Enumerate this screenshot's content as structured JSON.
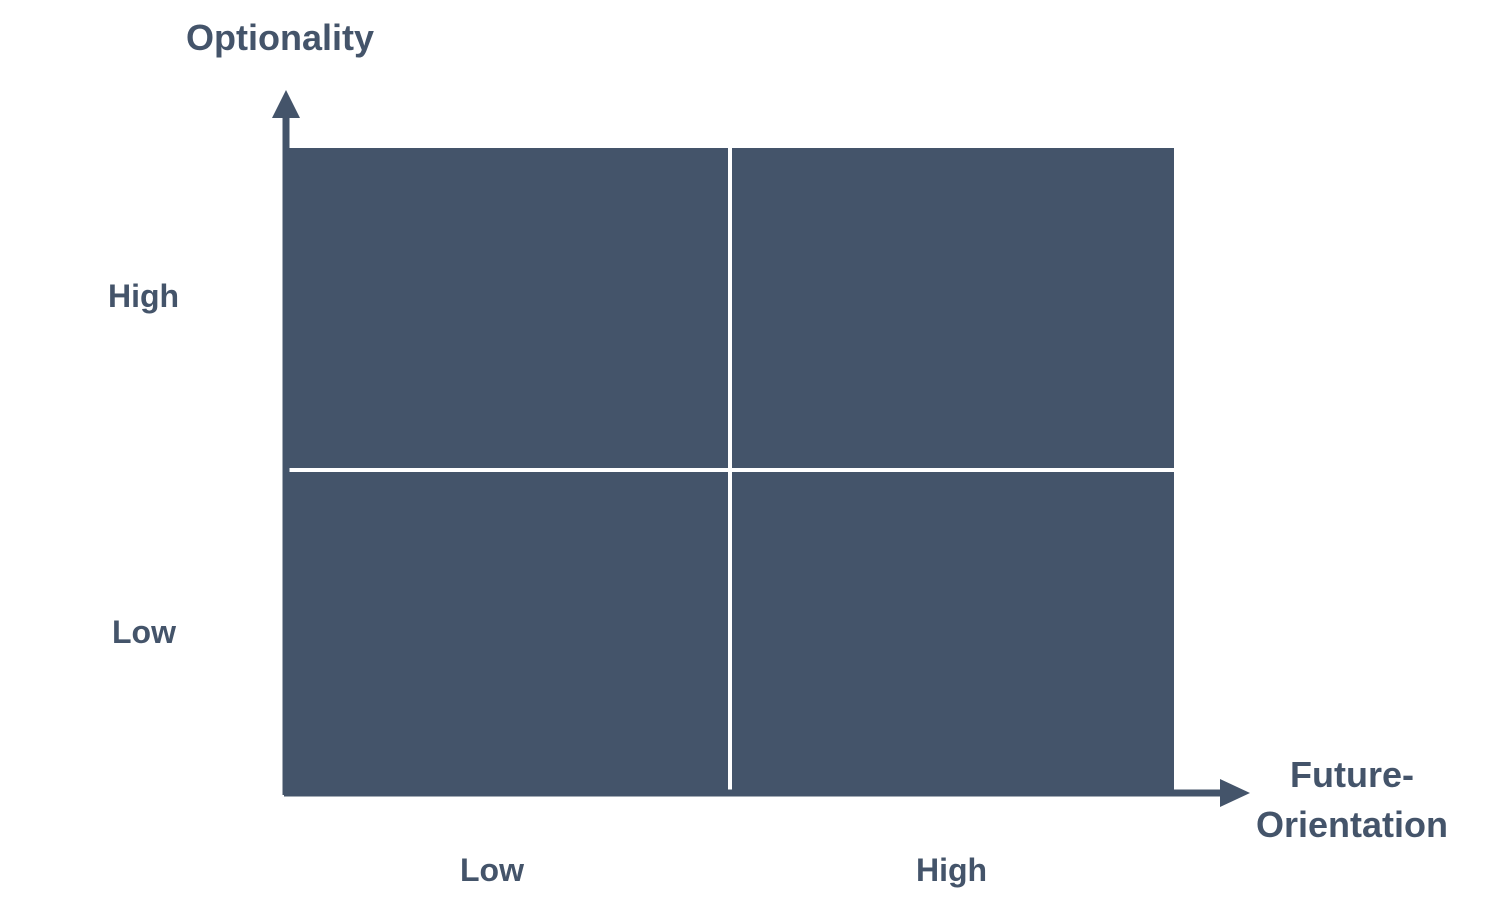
{
  "diagram": {
    "y_axis": {
      "title": "Optionality",
      "ticks": [
        "High",
        "Low"
      ]
    },
    "x_axis": {
      "title_line1": "Future-",
      "title_line2": "Orientation",
      "ticks": [
        "Low",
        "High"
      ]
    },
    "quadrants": [
      {
        "position": "top-left"
      },
      {
        "position": "top-right"
      },
      {
        "position": "bottom-left"
      },
      {
        "position": "bottom-right"
      }
    ],
    "colors": {
      "quadrant_fill": "#44546A",
      "axis": "#44546A",
      "text": "#44546A",
      "divider": "#ffffff"
    }
  }
}
